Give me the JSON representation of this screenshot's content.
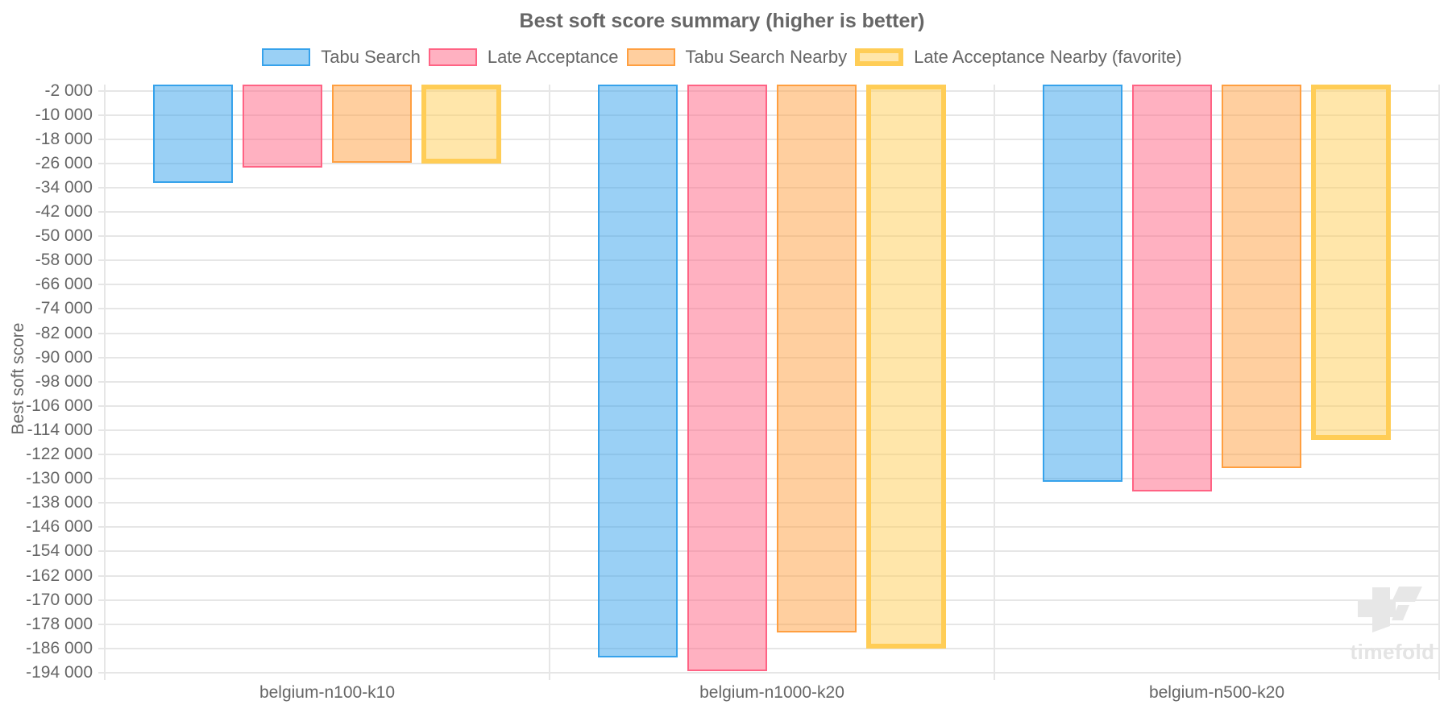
{
  "title": "Best soft score summary (higher is better)",
  "watermark": "timefold",
  "chart_data": {
    "type": "bar",
    "title": "Best soft score summary (higher is better)",
    "xlabel": "",
    "ylabel": "Best soft score",
    "ylim": [
      -194000,
      0
    ],
    "grid": true,
    "legend_position": "top",
    "categories": [
      "belgium-n100-k10",
      "belgium-n1000-k20",
      "belgium-n500-k20"
    ],
    "series": [
      {
        "name": "Tabu Search",
        "fill": "rgba(54,162,235,0.5)",
        "border": "#36a2eb",
        "border_width": 2,
        "values": [
          -32300,
          -189000,
          -131100
        ]
      },
      {
        "name": "Late Acceptance",
        "fill": "rgba(255,99,132,0.5)",
        "border": "#ff6384",
        "border_width": 2,
        "values": [
          -27300,
          -193600,
          -134200
        ]
      },
      {
        "name": "Tabu Search Nearby",
        "fill": "rgba(255,159,64,0.5)",
        "border": "#ff9f40",
        "border_width": 2,
        "values": [
          -25900,
          -180600,
          -126400
        ]
      },
      {
        "name": "Late Acceptance Nearby (favorite)",
        "fill": "rgba(255,205,86,0.5)",
        "border": "#ffcd56",
        "border_width": 6,
        "values": [
          -26100,
          -186100,
          -117300
        ]
      }
    ],
    "yticks": [
      {
        "value": -2000,
        "label": "-2 000"
      },
      {
        "value": -10000,
        "label": "-10 000"
      },
      {
        "value": -18000,
        "label": "-18 000"
      },
      {
        "value": -26000,
        "label": "-26 000"
      },
      {
        "value": -34000,
        "label": "-34 000"
      },
      {
        "value": -42000,
        "label": "-42 000"
      },
      {
        "value": -50000,
        "label": "-50 000"
      },
      {
        "value": -58000,
        "label": "-58 000"
      },
      {
        "value": -66000,
        "label": "-66 000"
      },
      {
        "value": -74000,
        "label": "-74 000"
      },
      {
        "value": -82000,
        "label": "-82 000"
      },
      {
        "value": -90000,
        "label": "-90 000"
      },
      {
        "value": -98000,
        "label": "-98 000"
      },
      {
        "value": -106000,
        "label": "-106 000"
      },
      {
        "value": -114000,
        "label": "-114 000"
      },
      {
        "value": -122000,
        "label": "-122 000"
      },
      {
        "value": -130000,
        "label": "-130 000"
      },
      {
        "value": -138000,
        "label": "-138 000"
      },
      {
        "value": -146000,
        "label": "-146 000"
      },
      {
        "value": -154000,
        "label": "-154 000"
      },
      {
        "value": -162000,
        "label": "-162 000"
      },
      {
        "value": -170000,
        "label": "-170 000"
      },
      {
        "value": -178000,
        "label": "-178 000"
      },
      {
        "value": -186000,
        "label": "-186 000"
      },
      {
        "value": -194000,
        "label": "-194 000"
      }
    ]
  }
}
